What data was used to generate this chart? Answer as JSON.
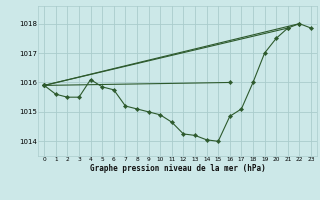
{
  "title": "Graphe pression niveau de la mer (hPa)",
  "bg_color": "#cce8e8",
  "line_color": "#2d5a2d",
  "marker_color": "#2d5a2d",
  "xlim": [
    -0.5,
    23.5
  ],
  "ylim": [
    1013.5,
    1018.6
  ],
  "yticks": [
    1014,
    1015,
    1016,
    1017,
    1018
  ],
  "xticks": [
    0,
    1,
    2,
    3,
    4,
    5,
    6,
    7,
    8,
    9,
    10,
    11,
    12,
    13,
    14,
    15,
    16,
    17,
    18,
    19,
    20,
    21,
    22,
    23
  ],
  "main_line_x": [
    0,
    1,
    2,
    3,
    4,
    5,
    6,
    7,
    8,
    9,
    10,
    11,
    12,
    13,
    14,
    15,
    16,
    17,
    18,
    19,
    20,
    21,
    22,
    23
  ],
  "main_line_y": [
    1015.9,
    1015.6,
    1015.5,
    1015.5,
    1016.1,
    1015.85,
    1015.75,
    1015.2,
    1015.1,
    1015.0,
    1014.9,
    1014.65,
    1014.25,
    1014.2,
    1014.05,
    1014.0,
    1014.85,
    1015.1,
    1016.0,
    1017.0,
    1017.5,
    1017.85,
    1018.0,
    1017.85
  ],
  "straight_lines": [
    {
      "x": [
        0,
        22
      ],
      "y": [
        1015.9,
        1018.0
      ]
    },
    {
      "x": [
        0,
        21
      ],
      "y": [
        1015.9,
        1017.85
      ]
    },
    {
      "x": [
        0,
        16
      ],
      "y": [
        1015.9,
        1016.0
      ]
    }
  ],
  "grid_color": "#aacccc",
  "grid_minor_color": "#bbdddd"
}
